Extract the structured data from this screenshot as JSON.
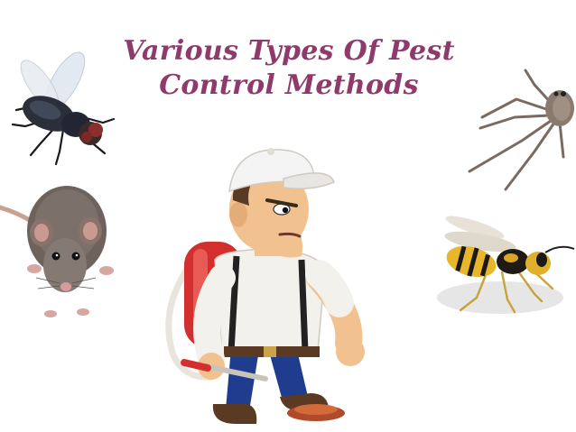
{
  "slide": {
    "title_line1": "Various Types Of Pest",
    "title_line2": "Control Methods"
  },
  "images": [
    {
      "name": "fly",
      "icon": "fly-icon"
    },
    {
      "name": "rat",
      "icon": "rat-icon"
    },
    {
      "name": "spider",
      "icon": "spider-icon"
    },
    {
      "name": "wasp",
      "icon": "wasp-icon"
    },
    {
      "name": "exterminator",
      "icon": "exterminator-icon"
    }
  ],
  "colors": {
    "title": "#8e3a6b",
    "tank": "#d32f2f",
    "pants": "#1f3c8f",
    "cap": "#f4f4f4"
  }
}
